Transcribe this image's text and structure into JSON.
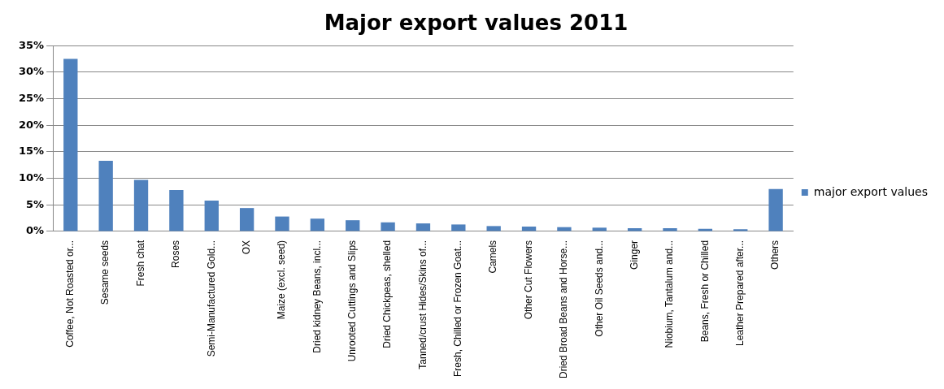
{
  "chart_data": {
    "type": "bar",
    "title": "Major export values 2011",
    "categories": [
      "Coffee, Not Roasted or...",
      "Sesame seeds",
      "Fresh chat",
      "Roses",
      "Semi-Manufactured Gold...",
      "OX",
      "Maize (excl. seed)",
      "Dried kidney Beans, incl...",
      "Unrooted Cuttings and Slips",
      "Dried Chickpeas, shelled",
      "Tanned/crust Hides/Skins of...",
      "Fresh, Chilled or Frozen Goat...",
      "Camels",
      "Other Cut Flowers",
      "Dried Broad Beans and Horse...",
      "Other Oil Seeds and...",
      "Ginger",
      "Niobium, Tantalum and...",
      "Beans, Fresh or Chilled",
      "Leather Prepared after...",
      "Others"
    ],
    "series": [
      {
        "name": "major export values",
        "color": "#4f81bd",
        "values": [
          32.5,
          13.3,
          9.7,
          7.8,
          5.8,
          4.4,
          2.8,
          2.4,
          2.1,
          1.7,
          1.5,
          1.3,
          1.0,
          0.9,
          0.8,
          0.7,
          0.6,
          0.6,
          0.5,
          0.4,
          8.0
        ]
      }
    ],
    "ylim": [
      0,
      35
    ],
    "yticks": [
      {
        "value": 0,
        "label": "0%"
      },
      {
        "value": 5,
        "label": "5%"
      },
      {
        "value": 10,
        "label": "10%"
      },
      {
        "value": 15,
        "label": "15%"
      },
      {
        "value": 20,
        "label": "20%"
      },
      {
        "value": 25,
        "label": "25%"
      },
      {
        "value": 30,
        "label": "30%"
      },
      {
        "value": 35,
        "label": "35%"
      }
    ],
    "grid": "y",
    "legend": "right"
  }
}
